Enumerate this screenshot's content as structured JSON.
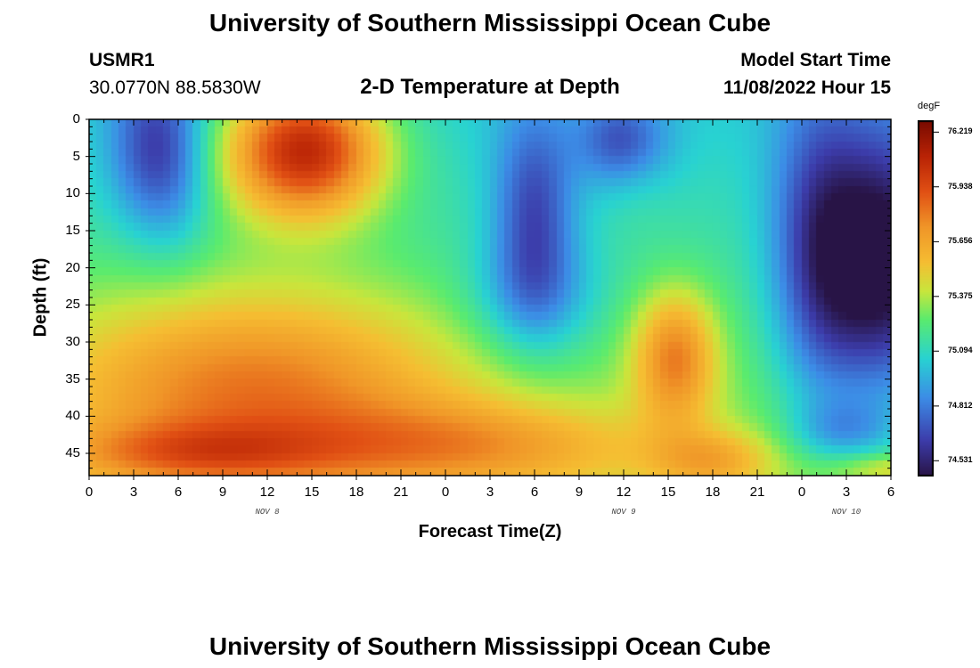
{
  "header": {
    "title": "University of Southern Mississippi Ocean Cube",
    "station": "USMR1",
    "coords": "30.0770N  88.5830W",
    "subtitle": "2-D Temperature at Depth",
    "model_start_label": "Model Start Time",
    "model_start_value": "11/08/2022 Hour 15"
  },
  "footer": {
    "title": "University of Southern Mississippi Ocean Cube"
  },
  "chart_data": {
    "type": "heatmap",
    "title": "2-D Temperature at Depth",
    "xlabel": "Forecast Time(Z)",
    "ylabel": "Depth (ft)",
    "x_hours_range": [
      0,
      54
    ],
    "y_range_ft": [
      0,
      48
    ],
    "x_tick_labels": [
      "0",
      "3",
      "6",
      "9",
      "12",
      "15",
      "18",
      "21",
      "0",
      "3",
      "6",
      "9",
      "12",
      "15",
      "18",
      "21",
      "0",
      "3",
      "6"
    ],
    "y_tick_labels": [
      "0",
      "5",
      "10",
      "15",
      "20",
      "25",
      "30",
      "35",
      "40",
      "45"
    ],
    "day_labels": [
      {
        "label": "NOV 8",
        "hour": 12
      },
      {
        "label": "NOV 9",
        "hour": 36
      },
      {
        "label": "NOV 10",
        "hour": 51
      }
    ],
    "colorbar": {
      "unit": "degF",
      "ticks": [
        "76.219",
        "75.938",
        "75.656",
        "75.375",
        "75.094",
        "74.812",
        "74.531"
      ],
      "min": 74.45,
      "max": 76.28
    },
    "temperature_features": [
      {
        "desc": "warm surface core",
        "hour_center": 14,
        "depth_center_ft": 4,
        "value": 76.22
      },
      {
        "desc": "cool surface pocket",
        "hour_center": 4,
        "depth_center_ft": 5,
        "value": 74.85
      },
      {
        "desc": "cool V-shaped plume",
        "hour_center": 30,
        "depth_center_ft": 12,
        "value": 74.7
      },
      {
        "desc": "warm deep tongue",
        "hour_center": 40,
        "depth_center_ft": 32,
        "value": 75.6
      },
      {
        "desc": "cold upper water column",
        "hour_center": 53,
        "depth_center_ft": 15,
        "value": 74.48
      },
      {
        "desc": "warm bottom layer",
        "hour_center": 28,
        "depth_center_ft": 46,
        "value": 75.55
      }
    ]
  }
}
